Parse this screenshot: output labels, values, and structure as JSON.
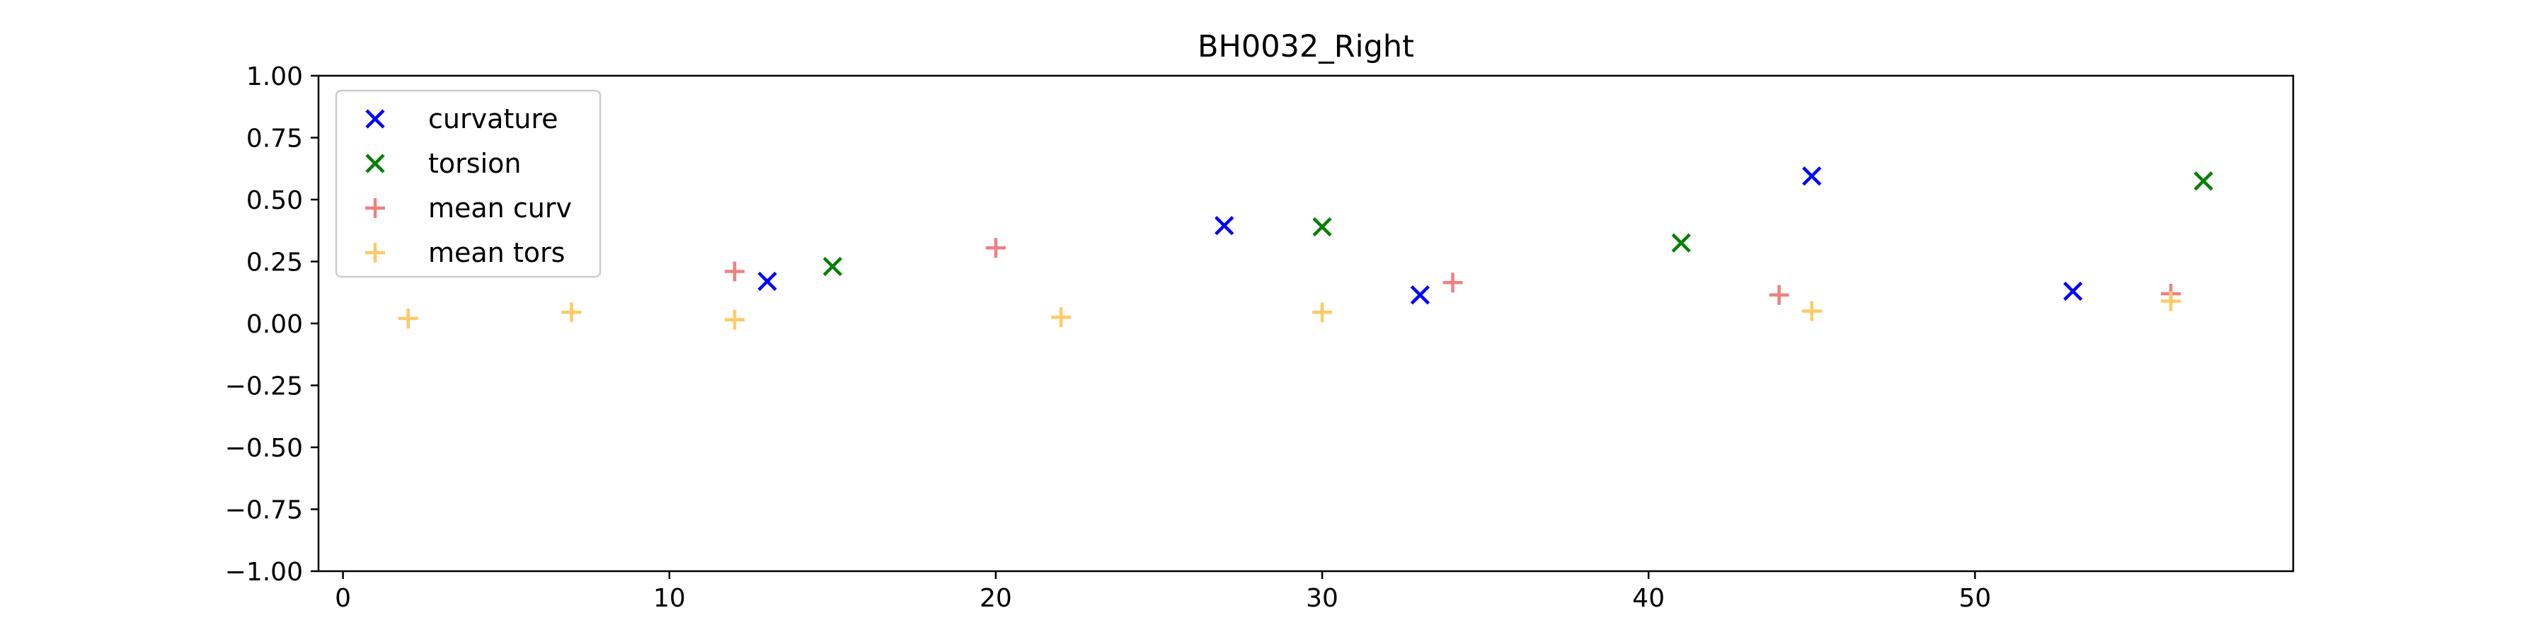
{
  "chart_data": {
    "type": "scatter",
    "title": "BH0032_Right",
    "xlabel": "",
    "ylabel": "",
    "xlim": [
      -0.75,
      59.75
    ],
    "ylim": [
      -1.0,
      1.0
    ],
    "xticks": [
      0,
      10,
      20,
      30,
      40,
      50
    ],
    "yticks": [
      1.0,
      0.75,
      0.5,
      0.25,
      0.0,
      -0.25,
      -0.5,
      -0.75,
      -1.0
    ],
    "xtick_labels": [
      "0",
      "10",
      "20",
      "30",
      "40",
      "50"
    ],
    "ytick_labels": [
      "1.00",
      "0.75",
      "0.50",
      "0.25",
      "0.00",
      "−0.25",
      "−0.50",
      "−0.75",
      "−1.00"
    ],
    "grid": false,
    "legend_position": "upper-left",
    "series": [
      {
        "name": "curvature",
        "marker": "x",
        "color": "#0000ff",
        "x": [
          13,
          27,
          33,
          45,
          53
        ],
        "y": [
          0.17,
          0.395,
          0.115,
          0.595,
          0.13
        ]
      },
      {
        "name": "torsion",
        "marker": "x",
        "color": "#008000",
        "x": [
          15,
          30,
          41,
          57
        ],
        "y": [
          0.23,
          0.39,
          0.325,
          0.575
        ]
      },
      {
        "name": "mean curv",
        "marker": "+",
        "color": "#f08080",
        "x": [
          12,
          20,
          34,
          44,
          56
        ],
        "y": [
          0.21,
          0.305,
          0.165,
          0.115,
          0.12
        ]
      },
      {
        "name": "mean tors",
        "marker": "+",
        "color": "#ffc966",
        "x": [
          2,
          7,
          12,
          22,
          30,
          45,
          56
        ],
        "y": [
          0.02,
          0.045,
          0.015,
          0.025,
          0.045,
          0.05,
          0.09
        ]
      }
    ]
  }
}
